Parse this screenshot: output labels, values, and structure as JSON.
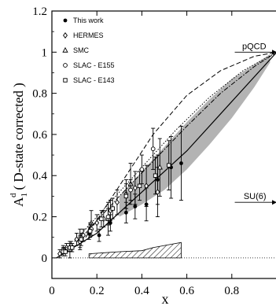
{
  "chart_data": {
    "type": "scatter",
    "title": "",
    "xlabel": "x",
    "ylabel_main": "A",
    "ylabel_sub": "1",
    "ylabel_sup": "d",
    "ylabel_suffix": "( D-state corrected )",
    "xlim": [
      0,
      1.0
    ],
    "ylim": [
      -0.1,
      1.2
    ],
    "xticks": [
      0,
      0.2,
      0.4,
      0.6,
      0.8
    ],
    "xtick_labels": [
      "0",
      "0.2",
      "0.4",
      "0.6",
      "0.8"
    ],
    "yticks": [
      0,
      0.2,
      0.4,
      0.6,
      0.8,
      1.0,
      1.2
    ],
    "ytick_labels": [
      "0",
      "0.2",
      "0.4",
      "0.6",
      "0.8",
      "1",
      "1.2"
    ],
    "grid": false,
    "legend_position": "top-left",
    "series": [
      {
        "name": "This work",
        "marker": "filled-circle",
        "x": [
          0.165,
          0.21,
          0.26,
          0.33,
          0.37,
          0.42,
          0.47,
          0.53,
          0.575
        ],
        "y": [
          0.12,
          0.11,
          0.17,
          0.22,
          0.25,
          0.26,
          0.38,
          0.44,
          0.46
        ],
        "err": [
          0.03,
          0.03,
          0.04,
          0.05,
          0.06,
          0.08,
          0.12,
          0.15,
          0.18
        ]
      },
      {
        "name": "HERMES",
        "marker": "diamond",
        "x": [
          0.035,
          0.05,
          0.065,
          0.085,
          0.11,
          0.14,
          0.17,
          0.2,
          0.23,
          0.26,
          0.29,
          0.33,
          0.37,
          0.42,
          0.47
        ],
        "y": [
          0.02,
          0.04,
          0.05,
          0.06,
          0.09,
          0.11,
          0.14,
          0.17,
          0.19,
          0.23,
          0.27,
          0.31,
          0.34,
          0.35,
          0.32
        ],
        "err": [
          0.02,
          0.02,
          0.02,
          0.02,
          0.03,
          0.03,
          0.03,
          0.04,
          0.04,
          0.05,
          0.06,
          0.07,
          0.08,
          0.1,
          0.12
        ]
      },
      {
        "name": "SMC",
        "marker": "open-triangle",
        "x": [
          0.08,
          0.125,
          0.175,
          0.25,
          0.35,
          0.48
        ],
        "y": [
          0.04,
          0.09,
          0.17,
          0.19,
          0.36,
          0.44
        ],
        "err": [
          0.04,
          0.05,
          0.06,
          0.08,
          0.1,
          0.14
        ]
      },
      {
        "name": "SLAC - E155",
        "marker": "open-circle",
        "x": [
          0.05,
          0.08,
          0.125,
          0.175,
          0.25,
          0.35,
          0.4,
          0.45
        ],
        "y": [
          0.03,
          0.05,
          0.08,
          0.14,
          0.2,
          0.33,
          0.43,
          0.53
        ],
        "err": [
          0.02,
          0.02,
          0.03,
          0.03,
          0.04,
          0.05,
          0.07,
          0.1
        ]
      },
      {
        "name": "SLAC - E143",
        "marker": "open-square",
        "x": [
          0.06,
          0.09,
          0.13,
          0.17,
          0.22,
          0.27,
          0.33,
          0.39,
          0.46,
          0.52
        ],
        "y": [
          0.03,
          0.05,
          0.09,
          0.13,
          0.19,
          0.24,
          0.3,
          0.35,
          0.4,
          0.45
        ],
        "err": [
          0.02,
          0.02,
          0.03,
          0.03,
          0.04,
          0.05,
          0.06,
          0.07,
          0.09,
          0.12
        ]
      }
    ],
    "curves": [
      {
        "style": "solid",
        "x": [
          0.02,
          0.2,
          0.4,
          0.6,
          0.8,
          1.0
        ],
        "y": [
          0.0,
          0.12,
          0.32,
          0.52,
          0.76,
          1.0
        ]
      },
      {
        "style": "dashed",
        "x": [
          0.15,
          0.3,
          0.45,
          0.6,
          0.75,
          0.9,
          1.0
        ],
        "y": [
          0.1,
          0.35,
          0.6,
          0.79,
          0.91,
          0.98,
          1.0
        ]
      },
      {
        "style": "dotted",
        "x": [
          0.1,
          0.25,
          0.4,
          0.55,
          0.7,
          0.85,
          1.0
        ],
        "y": [
          0.08,
          0.26,
          0.44,
          0.62,
          0.78,
          0.91,
          1.0
        ]
      },
      {
        "style": "dashdot",
        "x": [
          0.15,
          0.3,
          0.45,
          0.6,
          0.75,
          0.9,
          1.0
        ],
        "y": [
          0.12,
          0.3,
          0.47,
          0.64,
          0.8,
          0.93,
          1.0
        ]
      }
    ],
    "shaded_band": {
      "x": [
        0.3,
        0.4,
        0.5,
        0.6,
        0.7,
        0.8,
        0.9,
        0.97
      ],
      "y_low": [
        0.2,
        0.26,
        0.33,
        0.43,
        0.55,
        0.68,
        0.83,
        0.95
      ],
      "y_high": [
        0.3,
        0.42,
        0.54,
        0.66,
        0.77,
        0.87,
        0.94,
        0.99
      ]
    },
    "systematic_band": {
      "x": [
        0.165,
        0.3,
        0.4,
        0.45,
        0.5,
        0.575
      ],
      "y_high": [
        0.02,
        0.03,
        0.035,
        0.05,
        0.06,
        0.075
      ]
    },
    "annotations": [
      {
        "label": "pQCD",
        "x": 0.96,
        "y": 1.0
      },
      {
        "label": "SU(6)",
        "x": 0.96,
        "y": 0.27
      }
    ]
  }
}
